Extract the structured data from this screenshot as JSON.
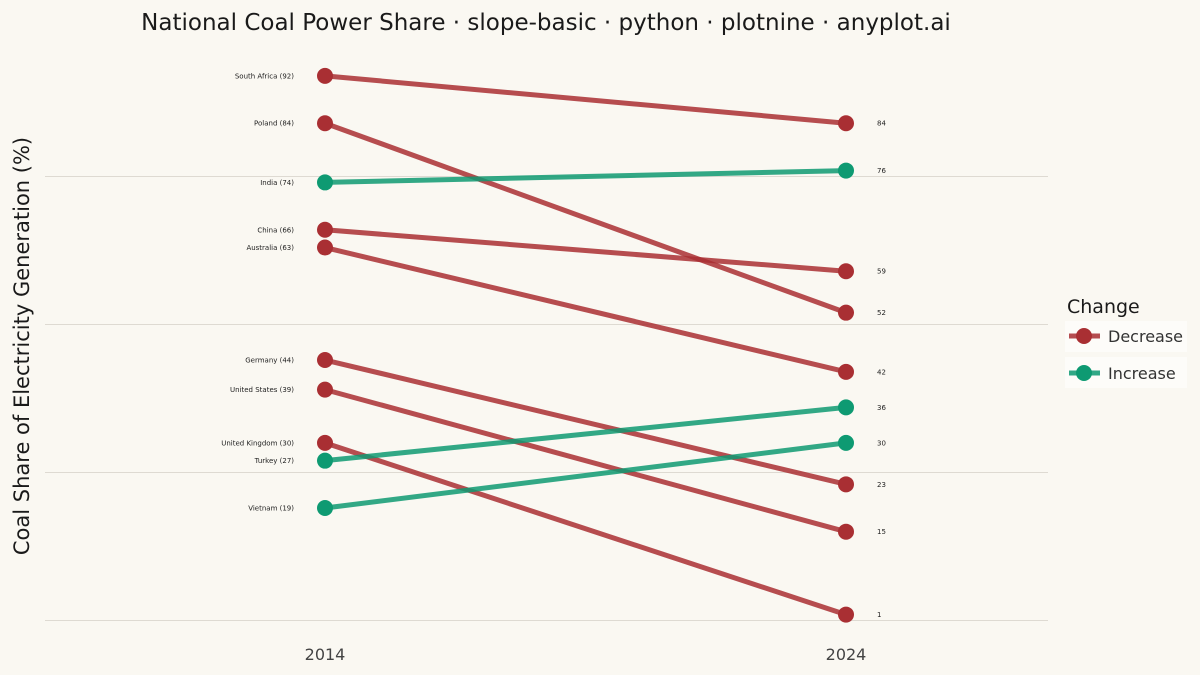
{
  "chart_data": {
    "type": "line",
    "title": "National Coal Power Share · slope-basic · python · plotnine · anyplot.ai",
    "ylabel": "Coal Share of Electricity Generation (%)",
    "xlabel": "",
    "x": [
      "2014",
      "2024"
    ],
    "ylim": [
      0,
      95
    ],
    "grid": true,
    "legend_position": "right",
    "legend": {
      "title": "Change",
      "entries": [
        {
          "label": "Decrease",
          "color": "#A92F33"
        },
        {
          "label": "Increase",
          "color": "#0E9A72"
        }
      ]
    },
    "series": [
      {
        "country": "South Africa",
        "start": 92,
        "end": 84,
        "change": "Decrease",
        "start_label": "South Africa (92)",
        "end_label": "84"
      },
      {
        "country": "Poland",
        "start": 84,
        "end": 52,
        "change": "Decrease",
        "start_label": "Poland (84)",
        "end_label": "52"
      },
      {
        "country": "India",
        "start": 74,
        "end": 76,
        "change": "Increase",
        "start_label": "India (74)",
        "end_label": "76"
      },
      {
        "country": "China",
        "start": 66,
        "end": 59,
        "change": "Decrease",
        "start_label": "China (66)",
        "end_label": "59"
      },
      {
        "country": "Australia",
        "start": 63,
        "end": 42,
        "change": "Decrease",
        "start_label": "Australia (63)",
        "end_label": "42"
      },
      {
        "country": "Germany",
        "start": 44,
        "end": 23,
        "change": "Decrease",
        "start_label": "Germany (44)",
        "end_label": "23"
      },
      {
        "country": "United States",
        "start": 39,
        "end": 15,
        "change": "Decrease",
        "start_label": "United States (39)",
        "end_label": "15"
      },
      {
        "country": "United Kingdom",
        "start": 30,
        "end": 1,
        "change": "Decrease",
        "start_label": "United Kingdom (30)",
        "end_label": "1"
      },
      {
        "country": "Turkey",
        "start": 27,
        "end": 36,
        "change": "Increase",
        "start_label": "Turkey (27)",
        "end_label": "36"
      },
      {
        "country": "Vietnam",
        "start": 19,
        "end": 30,
        "change": "Increase",
        "start_label": "Vietnam (19)",
        "end_label": "30"
      }
    ]
  }
}
